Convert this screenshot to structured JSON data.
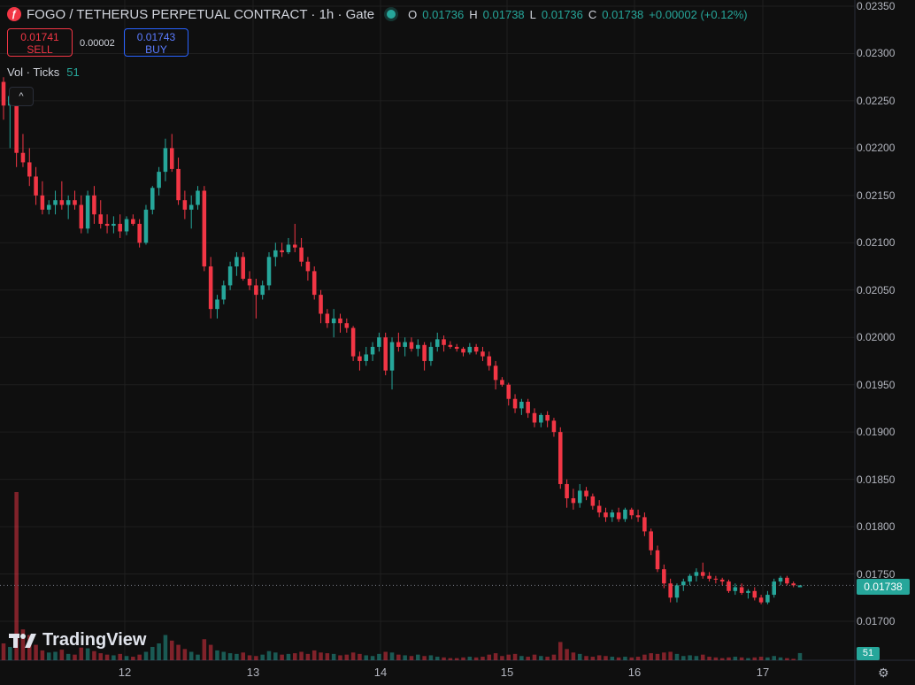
{
  "header": {
    "symbol_title": "FOGO / TETHERUS PERPETUAL CONTRACT · 1h · Gate",
    "logo_glyph": "ƒ",
    "ohlc": {
      "o_label": "O",
      "o": "0.01736",
      "h_label": "H",
      "h": "0.01738",
      "l_label": "L",
      "l": "0.01736",
      "c_label": "C",
      "c": "0.01738",
      "change": "+0.00002 (+0.12%)"
    }
  },
  "trade": {
    "sell_price": "0.01741",
    "sell_label": "SELL",
    "spread": "0.00002",
    "buy_price": "0.01743",
    "buy_label": "BUY"
  },
  "volume_legend": {
    "label": "Vol · Ticks",
    "value": "51"
  },
  "price_axis": {
    "labels": [
      "0.02350",
      "0.02300",
      "0.02250",
      "0.02200",
      "0.02150",
      "0.02100",
      "0.02050",
      "0.02000",
      "0.01950",
      "0.01900",
      "0.01850",
      "0.01800",
      "0.01750",
      "0.01700"
    ],
    "last_price": "0.01738",
    "last_volume": "51"
  },
  "time_axis": {
    "labels": [
      "12",
      "13",
      "14",
      "15",
      "16",
      "17"
    ]
  },
  "branding": {
    "name": "TradingView"
  },
  "colors": {
    "up": "#26a69a",
    "down": "#f23645",
    "background": "#0f0f0f",
    "grid": "#1f1f1f"
  },
  "icons": {
    "settings": "gear-icon",
    "collapse": "chevron-up-icon"
  },
  "chart_data": {
    "type": "candlestick",
    "interval": "1h",
    "price_range": [
      0.0167,
      0.0235
    ],
    "x_labels": [
      "12",
      "13",
      "14",
      "15",
      "16",
      "17"
    ],
    "candles": [
      [
        0.0227,
        0.02275,
        0.0223,
        0.02245,
        120
      ],
      [
        0.02245,
        0.02262,
        0.022,
        0.02255,
        95
      ],
      [
        0.02255,
        0.0226,
        0.0218,
        0.02195,
        1200
      ],
      [
        0.02195,
        0.02215,
        0.0218,
        0.02185,
        220
      ],
      [
        0.02185,
        0.022,
        0.0216,
        0.0217,
        180
      ],
      [
        0.0217,
        0.0218,
        0.0214,
        0.0215,
        110
      ],
      [
        0.0215,
        0.02165,
        0.0213,
        0.02135,
        70
      ],
      [
        0.02135,
        0.02145,
        0.0213,
        0.0214,
        55
      ],
      [
        0.0214,
        0.02155,
        0.0213,
        0.02145,
        60
      ],
      [
        0.02145,
        0.02165,
        0.02135,
        0.0214,
        75
      ],
      [
        0.0214,
        0.0215,
        0.02125,
        0.02145,
        45
      ],
      [
        0.02145,
        0.02155,
        0.02135,
        0.0214,
        40
      ],
      [
        0.0214,
        0.0215,
        0.0211,
        0.02115,
        90
      ],
      [
        0.02115,
        0.02155,
        0.0211,
        0.0215,
        85
      ],
      [
        0.0215,
        0.0216,
        0.0212,
        0.0213,
        65
      ],
      [
        0.0213,
        0.02145,
        0.02115,
        0.0212,
        50
      ],
      [
        0.0212,
        0.0213,
        0.0211,
        0.02118,
        40
      ],
      [
        0.02118,
        0.02128,
        0.0211,
        0.0212,
        35
      ],
      [
        0.0212,
        0.0213,
        0.02105,
        0.02112,
        45
      ],
      [
        0.02112,
        0.02128,
        0.02108,
        0.02125,
        30
      ],
      [
        0.02125,
        0.0213,
        0.02118,
        0.0212,
        25
      ],
      [
        0.0212,
        0.02125,
        0.02095,
        0.021,
        40
      ],
      [
        0.021,
        0.0214,
        0.02098,
        0.02135,
        60
      ],
      [
        0.02135,
        0.0216,
        0.0213,
        0.02158,
        95
      ],
      [
        0.02158,
        0.0218,
        0.0215,
        0.02175,
        120
      ],
      [
        0.02175,
        0.0221,
        0.02165,
        0.022,
        180
      ],
      [
        0.022,
        0.02215,
        0.02175,
        0.02178,
        140
      ],
      [
        0.02178,
        0.0219,
        0.0214,
        0.02145,
        110
      ],
      [
        0.02145,
        0.02155,
        0.02125,
        0.02135,
        80
      ],
      [
        0.02135,
        0.0215,
        0.02115,
        0.0214,
        60
      ],
      [
        0.0214,
        0.0216,
        0.02135,
        0.02155,
        40
      ],
      [
        0.02155,
        0.0216,
        0.0207,
        0.02075,
        150
      ],
      [
        0.02075,
        0.02085,
        0.0202,
        0.0203,
        110
      ],
      [
        0.0203,
        0.02045,
        0.0202,
        0.0204,
        70
      ],
      [
        0.0204,
        0.0206,
        0.02035,
        0.02055,
        60
      ],
      [
        0.02055,
        0.0208,
        0.0205,
        0.02075,
        50
      ],
      [
        0.02075,
        0.0209,
        0.02065,
        0.02085,
        45
      ],
      [
        0.02085,
        0.0209,
        0.0206,
        0.02062,
        55
      ],
      [
        0.02062,
        0.0207,
        0.0205,
        0.02055,
        35
      ],
      [
        0.02055,
        0.02062,
        0.0202,
        0.02045,
        30
      ],
      [
        0.02045,
        0.0206,
        0.0204,
        0.02055,
        40
      ],
      [
        0.02055,
        0.0209,
        0.0205,
        0.02085,
        65
      ],
      [
        0.02085,
        0.021,
        0.02075,
        0.02092,
        55
      ],
      [
        0.02092,
        0.021,
        0.02085,
        0.0209,
        40
      ],
      [
        0.0209,
        0.02105,
        0.02088,
        0.02098,
        45
      ],
      [
        0.02098,
        0.0212,
        0.0209,
        0.02095,
        50
      ],
      [
        0.02095,
        0.02105,
        0.02075,
        0.0208,
        60
      ],
      [
        0.0208,
        0.02085,
        0.0206,
        0.0207,
        45
      ],
      [
        0.0207,
        0.02075,
        0.0204,
        0.02045,
        70
      ],
      [
        0.02045,
        0.0205,
        0.02015,
        0.02025,
        55
      ],
      [
        0.02025,
        0.0203,
        0.0201,
        0.02015,
        50
      ],
      [
        0.02015,
        0.0203,
        0.02,
        0.0202,
        45
      ],
      [
        0.0202,
        0.02025,
        0.02005,
        0.02015,
        35
      ],
      [
        0.02015,
        0.0202,
        0.02005,
        0.0201,
        40
      ],
      [
        0.0201,
        0.02012,
        0.01975,
        0.0198,
        55
      ],
      [
        0.0198,
        0.01985,
        0.01965,
        0.01975,
        45
      ],
      [
        0.01975,
        0.0199,
        0.0197,
        0.01982,
        35
      ],
      [
        0.01982,
        0.01995,
        0.01975,
        0.0199,
        30
      ],
      [
        0.0199,
        0.02005,
        0.01985,
        0.02,
        45
      ],
      [
        0.02,
        0.02005,
        0.0196,
        0.01965,
        60
      ],
      [
        0.01965,
        0.02,
        0.01945,
        0.01995,
        55
      ],
      [
        0.01995,
        0.02005,
        0.01985,
        0.0199,
        40
      ],
      [
        0.0199,
        0.02,
        0.0198,
        0.01995,
        35
      ],
      [
        0.01995,
        0.02,
        0.01985,
        0.01988,
        30
      ],
      [
        0.01988,
        0.01998,
        0.0198,
        0.01992,
        40
      ],
      [
        0.01992,
        0.01995,
        0.01965,
        0.01975,
        30
      ],
      [
        0.01975,
        0.01995,
        0.0197,
        0.0199,
        35
      ],
      [
        0.0199,
        0.02005,
        0.01985,
        0.01998,
        25
      ],
      [
        0.01998,
        0.02002,
        0.01985,
        0.01992,
        20
      ],
      [
        0.01992,
        0.01996,
        0.01988,
        0.0199,
        15
      ],
      [
        0.0199,
        0.01993,
        0.01985,
        0.01988,
        15
      ],
      [
        0.01988,
        0.0199,
        0.0198,
        0.01984,
        20
      ],
      [
        0.01984,
        0.01994,
        0.01982,
        0.0199,
        25
      ],
      [
        0.0199,
        0.01993,
        0.01982,
        0.01985,
        20
      ],
      [
        0.01985,
        0.0199,
        0.01975,
        0.0198,
        25
      ],
      [
        0.0198,
        0.01985,
        0.01965,
        0.0197,
        40
      ],
      [
        0.0197,
        0.01975,
        0.01945,
        0.01955,
        50
      ],
      [
        0.01955,
        0.01958,
        0.01948,
        0.0195,
        30
      ],
      [
        0.0195,
        0.01952,
        0.01928,
        0.01935,
        40
      ],
      [
        0.01935,
        0.0194,
        0.0192,
        0.01925,
        45
      ],
      [
        0.01925,
        0.01935,
        0.01918,
        0.01932,
        30
      ],
      [
        0.01932,
        0.01935,
        0.01915,
        0.0192,
        25
      ],
      [
        0.0192,
        0.01925,
        0.01905,
        0.0191,
        40
      ],
      [
        0.0191,
        0.0192,
        0.01905,
        0.01918,
        30
      ],
      [
        0.01918,
        0.01922,
        0.01905,
        0.01912,
        25
      ],
      [
        0.01912,
        0.01915,
        0.01895,
        0.019,
        40
      ],
      [
        0.019,
        0.01905,
        0.0184,
        0.01845,
        130
      ],
      [
        0.01845,
        0.0185,
        0.0182,
        0.0183,
        80
      ],
      [
        0.0183,
        0.0184,
        0.01818,
        0.01825,
        55
      ],
      [
        0.01825,
        0.01845,
        0.0182,
        0.01838,
        45
      ],
      [
        0.01838,
        0.01842,
        0.01828,
        0.01832,
        30
      ],
      [
        0.01832,
        0.01835,
        0.01818,
        0.01822,
        25
      ],
      [
        0.01822,
        0.01828,
        0.0181,
        0.01815,
        35
      ],
      [
        0.01815,
        0.0182,
        0.01805,
        0.0181,
        30
      ],
      [
        0.0181,
        0.01818,
        0.01805,
        0.01815,
        25
      ],
      [
        0.01815,
        0.0182,
        0.01805,
        0.01808,
        20
      ],
      [
        0.01808,
        0.0182,
        0.01805,
        0.01818,
        25
      ],
      [
        0.01818,
        0.0182,
        0.01808,
        0.01812,
        20
      ],
      [
        0.01812,
        0.01818,
        0.01805,
        0.0181,
        25
      ],
      [
        0.0181,
        0.01815,
        0.0179,
        0.01795,
        40
      ],
      [
        0.01795,
        0.01798,
        0.0177,
        0.01775,
        50
      ],
      [
        0.01775,
        0.0178,
        0.01752,
        0.01755,
        45
      ],
      [
        0.01755,
        0.0176,
        0.01735,
        0.0174,
        55
      ],
      [
        0.0174,
        0.01745,
        0.0172,
        0.01725,
        60
      ],
      [
        0.01725,
        0.0174,
        0.0172,
        0.01738,
        45
      ],
      [
        0.01738,
        0.01745,
        0.01732,
        0.01742,
        30
      ],
      [
        0.01742,
        0.0175,
        0.01738,
        0.01748,
        35
      ],
      [
        0.01748,
        0.01756,
        0.01742,
        0.01752,
        30
      ],
      [
        0.01752,
        0.01762,
        0.01745,
        0.01748,
        40
      ],
      [
        0.01748,
        0.01752,
        0.01742,
        0.01745,
        25
      ],
      [
        0.01745,
        0.01748,
        0.0174,
        0.01744,
        20
      ],
      [
        0.01744,
        0.01746,
        0.01738,
        0.01742,
        15
      ],
      [
        0.01742,
        0.01744,
        0.0173,
        0.01732,
        20
      ],
      [
        0.01732,
        0.0174,
        0.01728,
        0.01736,
        25
      ],
      [
        0.01736,
        0.0174,
        0.01728,
        0.0173,
        20
      ],
      [
        0.0173,
        0.01734,
        0.01724,
        0.01732,
        15
      ],
      [
        0.01732,
        0.01736,
        0.01722,
        0.01725,
        20
      ],
      [
        0.01725,
        0.01728,
        0.01718,
        0.0172,
        25
      ],
      [
        0.0172,
        0.01732,
        0.01718,
        0.01728,
        20
      ],
      [
        0.01728,
        0.01745,
        0.01725,
        0.01742,
        30
      ],
      [
        0.01742,
        0.01748,
        0.01738,
        0.01746,
        20
      ],
      [
        0.01746,
        0.01748,
        0.01738,
        0.0174,
        15
      ],
      [
        0.0174,
        0.01742,
        0.01736,
        0.01738,
        10
      ],
      [
        0.01736,
        0.01738,
        0.01736,
        0.01738,
        51
      ]
    ]
  }
}
